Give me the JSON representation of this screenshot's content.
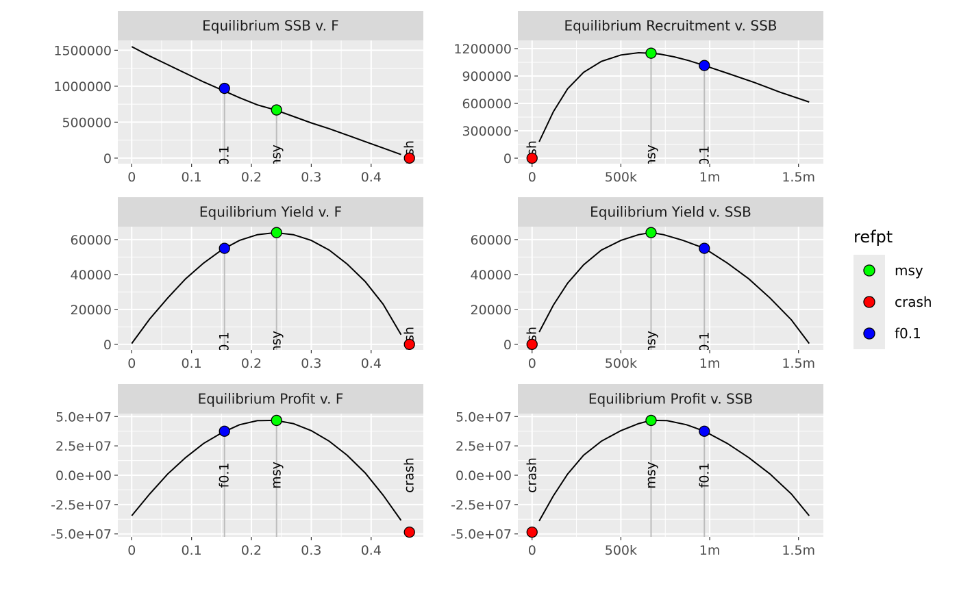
{
  "legend": {
    "title": "refpt",
    "entries": [
      {
        "label": "msy",
        "color": "#00ff00"
      },
      {
        "label": "crash",
        "color": "#ff0000"
      },
      {
        "label": "f0.1",
        "color": "#0000ff"
      }
    ]
  },
  "chart_data": [
    {
      "type": "line",
      "title": "Equilibrium SSB v. F",
      "xlim": [
        -0.0232,
        0.4872
      ],
      "ylim": [
        -77000,
        1637000
      ],
      "x_ticks": [
        0,
        0.1,
        0.2,
        0.3,
        0.4
      ],
      "x_tick_labels": [
        "0",
        "0.1",
        "0.2",
        "0.3",
        "0.4"
      ],
      "y_ticks": [
        0,
        500000,
        1000000,
        1500000
      ],
      "y_tick_labels": [
        "0",
        "500000",
        "1000000",
        "1500000"
      ],
      "curve": {
        "x": [
          0,
          0.03,
          0.06,
          0.09,
          0.12,
          0.15,
          0.18,
          0.21,
          0.24,
          0.27,
          0.3,
          0.33,
          0.36,
          0.39,
          0.42,
          0.45
        ],
        "y": [
          1550000,
          1420000,
          1300000,
          1180000,
          1060000,
          950000,
          840000,
          740000,
          670000,
          580000,
          490000,
          410000,
          320000,
          230000,
          140000,
          50000
        ]
      },
      "points": [
        {
          "refpt": "f0.1",
          "x": 0.155,
          "y": 970000
        },
        {
          "refpt": "msy",
          "x": 0.242,
          "y": 670000
        },
        {
          "refpt": "crash",
          "x": 0.464,
          "y": 0
        }
      ]
    },
    {
      "type": "line",
      "title": "Equilibrium Recruitment v. SSB",
      "xlim": [
        -80000,
        1640000
      ],
      "ylim": [
        -60000,
        1290000
      ],
      "x_ticks": [
        0,
        500000,
        1000000,
        1500000
      ],
      "x_tick_labels": [
        "0",
        "500k",
        "1m",
        "1.5m"
      ],
      "y_ticks": [
        0,
        300000,
        600000,
        900000,
        1200000
      ],
      "y_tick_labels": [
        "0",
        "300000",
        "600000",
        "900000",
        "1200000"
      ],
      "curve": {
        "x": [
          40000,
          120000,
          200000,
          290000,
          390000,
          500000,
          600000,
          670000,
          720000,
          800000,
          880000,
          970000,
          1100000,
          1250000,
          1400000,
          1560000
        ],
        "y": [
          180000,
          510000,
          760000,
          940000,
          1060000,
          1130000,
          1155000,
          1150000,
          1140000,
          1110000,
          1070000,
          1015000,
          930000,
          830000,
          720000,
          615000
        ]
      },
      "points": [
        {
          "refpt": "crash",
          "x": 0,
          "y": 0
        },
        {
          "refpt": "msy",
          "x": 670000,
          "y": 1150000
        },
        {
          "refpt": "f0.1",
          "x": 970000,
          "y": 1015000
        }
      ]
    },
    {
      "type": "line",
      "title": "Equilibrium Yield v. F",
      "xlim": [
        -0.0232,
        0.4872
      ],
      "ylim": [
        -3200,
        67400
      ],
      "x_ticks": [
        0,
        0.1,
        0.2,
        0.3,
        0.4
      ],
      "x_tick_labels": [
        "0",
        "0.1",
        "0.2",
        "0.3",
        "0.4"
      ],
      "y_ticks": [
        0,
        20000,
        40000,
        60000
      ],
      "y_tick_labels": [
        "0",
        "20000",
        "40000",
        "60000"
      ],
      "curve": {
        "x": [
          0,
          0.03,
          0.06,
          0.09,
          0.12,
          0.15,
          0.18,
          0.21,
          0.24,
          0.27,
          0.3,
          0.33,
          0.36,
          0.39,
          0.42,
          0.45
        ],
        "y": [
          500,
          14500,
          26500,
          37500,
          46500,
          54000,
          59500,
          62800,
          64000,
          62800,
          59500,
          54000,
          46000,
          36000,
          23000,
          5500
        ]
      },
      "points": [
        {
          "refpt": "f0.1",
          "x": 0.155,
          "y": 55000
        },
        {
          "refpt": "msy",
          "x": 0.242,
          "y": 64000
        },
        {
          "refpt": "crash",
          "x": 0.464,
          "y": 0
        }
      ]
    },
    {
      "type": "line",
      "title": "Equilibrium Yield v. SSB",
      "xlim": [
        -80000,
        1640000
      ],
      "ylim": [
        -3200,
        67400
      ],
      "x_ticks": [
        0,
        500000,
        1000000,
        1500000
      ],
      "x_tick_labels": [
        "0",
        "500k",
        "1m",
        "1.5m"
      ],
      "y_ticks": [
        0,
        20000,
        40000,
        60000
      ],
      "y_tick_labels": [
        "0",
        "20000",
        "40000",
        "60000"
      ],
      "curve": {
        "x": [
          40000,
          120000,
          200000,
          290000,
          390000,
          500000,
          600000,
          670000,
          740000,
          850000,
          970000,
          1100000,
          1220000,
          1340000,
          1460000,
          1560000
        ],
        "y": [
          7000,
          22500,
          35000,
          45500,
          54000,
          59500,
          62800,
          64000,
          62800,
          59500,
          55000,
          46500,
          37500,
          26500,
          14000,
          500
        ]
      },
      "points": [
        {
          "refpt": "crash",
          "x": 0,
          "y": 0
        },
        {
          "refpt": "msy",
          "x": 670000,
          "y": 64000
        },
        {
          "refpt": "f0.1",
          "x": 970000,
          "y": 55000
        }
      ]
    },
    {
      "type": "line",
      "title": "Equilibrium Profit v. F",
      "xlim": [
        -0.0232,
        0.4872
      ],
      "ylim": [
        -52500000,
        52500000
      ],
      "x_ticks": [
        0,
        0.1,
        0.2,
        0.3,
        0.4
      ],
      "x_tick_labels": [
        "0",
        "0.1",
        "0.2",
        "0.3",
        "0.4"
      ],
      "y_ticks": [
        -50000000,
        -25000000,
        0,
        25000000,
        50000000
      ],
      "y_tick_labels": [
        "-5.0e+07",
        "-2.5e+07",
        "0.0e+00",
        "2.5e+07",
        "5.0e+07"
      ],
      "curve": {
        "x": [
          0,
          0.03,
          0.06,
          0.09,
          0.12,
          0.15,
          0.18,
          0.21,
          0.24,
          0.27,
          0.3,
          0.33,
          0.36,
          0.39,
          0.42,
          0.45
        ],
        "y": [
          -34500000,
          -16000000,
          1000000,
          15000000,
          27000000,
          36000000,
          43000000,
          46500000,
          46700000,
          44000000,
          38000000,
          29000000,
          17000000,
          2000000,
          -17000000,
          -38500000
        ]
      },
      "points": [
        {
          "refpt": "f0.1",
          "x": 0.155,
          "y": 37500000
        },
        {
          "refpt": "msy",
          "x": 0.242,
          "y": 46700000
        },
        {
          "refpt": "crash",
          "x": 0.464,
          "y": -48500000
        }
      ]
    },
    {
      "type": "line",
      "title": "Equilibrium Profit v. SSB",
      "xlim": [
        -80000,
        1640000
      ],
      "ylim": [
        -52500000,
        52500000
      ],
      "x_ticks": [
        0,
        500000,
        1000000,
        1500000
      ],
      "x_tick_labels": [
        "0",
        "500k",
        "1m",
        "1.5m"
      ],
      "y_ticks": [
        -50000000,
        -25000000,
        0,
        25000000,
        50000000
      ],
      "y_tick_labels": [
        "-5.0e+07",
        "-2.5e+07",
        "0.0e+00",
        "2.5e+07",
        "5.0e+07"
      ],
      "curve": {
        "x": [
          40000,
          120000,
          200000,
          290000,
          390000,
          500000,
          600000,
          670000,
          760000,
          870000,
          970000,
          1100000,
          1220000,
          1340000,
          1460000,
          1560000
        ],
        "y": [
          -39000000,
          -17500000,
          1000000,
          17000000,
          29000000,
          38000000,
          44000000,
          46700000,
          46500000,
          43000000,
          37500000,
          27000000,
          15000000,
          1000000,
          -16000000,
          -34500000
        ]
      },
      "points": [
        {
          "refpt": "crash",
          "x": 0,
          "y": -48500000
        },
        {
          "refpt": "msy",
          "x": 670000,
          "y": 46700000
        },
        {
          "refpt": "f0.1",
          "x": 970000,
          "y": 37500000
        }
      ]
    }
  ]
}
